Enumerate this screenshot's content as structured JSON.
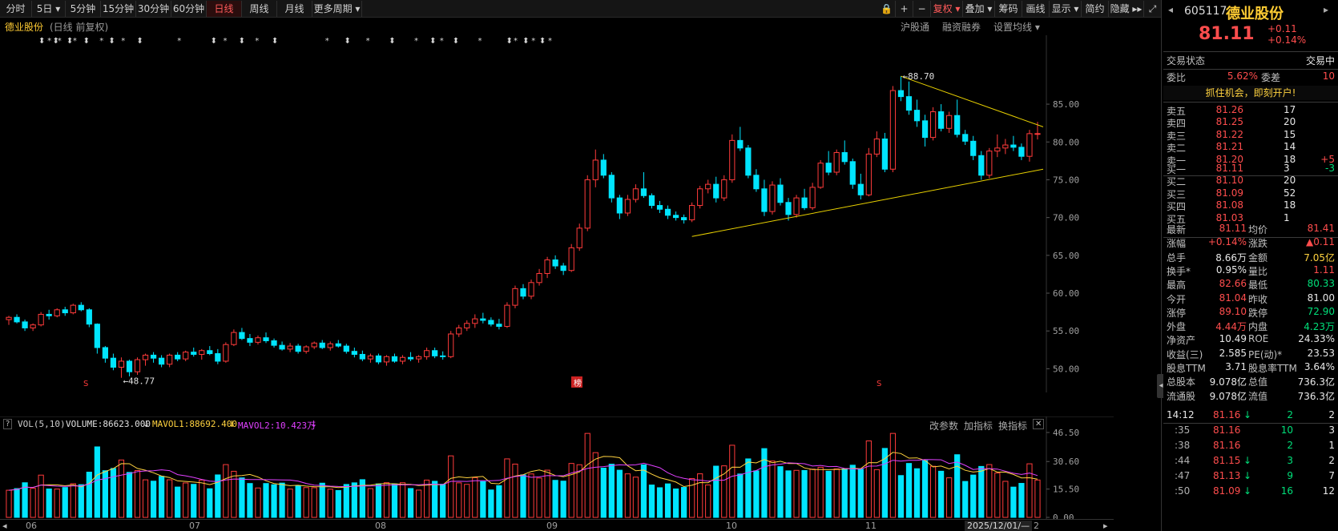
{
  "toolbar": {
    "periods": [
      "分时",
      "5日 ▾",
      "5分钟",
      "15分钟",
      "30分钟",
      "60分钟",
      "日线",
      "周线",
      "月线",
      "更多周期 ▾"
    ],
    "active_period": "日线",
    "right_buttons": [
      "🔒",
      "+",
      "−",
      "复权 ▾",
      "叠加 ▾",
      "筹码",
      "画线",
      "显示 ▾",
      "简约",
      "隐藏 ▸▸",
      "⤢"
    ]
  },
  "subheader": {
    "stock_name": "德业股份",
    "chart_desc": "(日线 前复权)",
    "links": [
      "沪股通",
      "融资融券",
      "设置均线 ▾"
    ]
  },
  "chart_data": {
    "type": "candlestick",
    "y_ticks": [
      "85.00",
      "80.00",
      "75.00",
      "70.00",
      "65.00",
      "60.00",
      "55.00",
      "50.00"
    ],
    "ylim": [
      47.5,
      92
    ],
    "x_labels": [
      "06",
      "07",
      "08",
      "09",
      "10",
      "11"
    ],
    "high_label": "88.70",
    "low_label": "48.77",
    "markers": [
      "S",
      "榜",
      "S"
    ],
    "ohlc": [
      [
        56.5,
        57.0,
        55.8,
        56.8
      ],
      [
        56.8,
        57.2,
        56.0,
        56.2
      ],
      [
        56.2,
        56.5,
        55.0,
        55.4
      ],
      [
        55.4,
        56.0,
        55.0,
        55.8
      ],
      [
        55.8,
        57.5,
        55.6,
        57.2
      ],
      [
        57.2,
        57.8,
        56.5,
        57.0
      ],
      [
        57.0,
        58.0,
        56.8,
        57.8
      ],
      [
        57.8,
        58.2,
        57.0,
        57.4
      ],
      [
        57.4,
        58.6,
        57.2,
        58.4
      ],
      [
        58.4,
        58.8,
        57.6,
        57.8
      ],
      [
        57.8,
        58.0,
        55.5,
        55.9
      ],
      [
        55.9,
        56.0,
        52.0,
        52.8
      ],
      [
        52.8,
        53.0,
        50.8,
        51.4
      ],
      [
        51.4,
        52.0,
        49.8,
        50.2
      ],
      [
        50.2,
        51.5,
        48.8,
        51.0
      ],
      [
        51.0,
        51.2,
        49.0,
        49.6
      ],
      [
        49.6,
        51.5,
        49.2,
        51.2
      ],
      [
        51.2,
        52.0,
        50.4,
        51.8
      ],
      [
        51.8,
        52.2,
        50.8,
        51.4
      ],
      [
        51.4,
        51.8,
        50.2,
        50.6
      ],
      [
        50.6,
        52.0,
        50.2,
        51.8
      ],
      [
        51.8,
        52.2,
        51.0,
        51.3
      ],
      [
        51.3,
        52.4,
        51.0,
        52.2
      ],
      [
        52.2,
        52.8,
        51.6,
        51.9
      ],
      [
        51.9,
        52.6,
        51.2,
        52.4
      ],
      [
        52.4,
        53.0,
        51.8,
        52.0
      ],
      [
        52.0,
        52.6,
        50.6,
        51.0
      ],
      [
        51.0,
        53.5,
        50.8,
        53.2
      ],
      [
        53.2,
        55.2,
        53.0,
        54.8
      ],
      [
        54.8,
        55.4,
        53.8,
        54.0
      ],
      [
        54.0,
        54.6,
        53.0,
        53.5
      ],
      [
        53.5,
        54.4,
        53.2,
        54.1
      ],
      [
        54.1,
        54.8,
        53.4,
        53.7
      ],
      [
        53.7,
        54.0,
        52.8,
        53.1
      ],
      [
        53.1,
        53.6,
        52.4,
        52.6
      ],
      [
        52.6,
        53.4,
        52.2,
        53.0
      ],
      [
        53.0,
        53.3,
        52.0,
        52.3
      ],
      [
        52.3,
        53.1,
        52.0,
        52.9
      ],
      [
        52.9,
        53.6,
        52.6,
        53.4
      ],
      [
        53.4,
        53.8,
        52.6,
        52.8
      ],
      [
        52.8,
        53.6,
        52.4,
        53.3
      ],
      [
        53.3,
        53.8,
        52.8,
        53.0
      ],
      [
        53.0,
        53.3,
        52.0,
        52.3
      ],
      [
        52.3,
        52.8,
        51.5,
        51.9
      ],
      [
        51.9,
        52.4,
        51.0,
        51.3
      ],
      [
        51.3,
        52.0,
        50.8,
        51.7
      ],
      [
        51.7,
        52.0,
        50.6,
        50.9
      ],
      [
        50.9,
        51.8,
        50.4,
        51.6
      ],
      [
        51.6,
        52.0,
        50.8,
        51.0
      ],
      [
        51.0,
        51.8,
        50.6,
        51.5
      ],
      [
        51.5,
        52.2,
        51.0,
        51.3
      ],
      [
        51.3,
        51.8,
        50.8,
        51.6
      ],
      [
        51.6,
        52.8,
        51.2,
        52.4
      ],
      [
        52.4,
        52.8,
        51.4,
        51.7
      ],
      [
        51.7,
        52.3,
        51.2,
        51.6
      ],
      [
        51.6,
        55.0,
        51.4,
        54.6
      ],
      [
        54.6,
        55.8,
        54.2,
        55.4
      ],
      [
        55.4,
        56.4,
        55.0,
        56.0
      ],
      [
        56.0,
        57.2,
        55.4,
        56.6
      ],
      [
        56.6,
        57.4,
        56.0,
        56.4
      ],
      [
        56.4,
        56.8,
        55.6,
        55.9
      ],
      [
        55.9,
        56.6,
        55.2,
        55.6
      ],
      [
        55.6,
        58.8,
        55.4,
        58.4
      ],
      [
        58.4,
        61.0,
        58.0,
        60.6
      ],
      [
        60.6,
        61.2,
        59.2,
        59.6
      ],
      [
        59.6,
        61.8,
        59.2,
        61.4
      ],
      [
        61.4,
        63.2,
        61.0,
        62.6
      ],
      [
        62.6,
        64.8,
        62.0,
        64.4
      ],
      [
        64.4,
        65.0,
        63.2,
        63.6
      ],
      [
        63.6,
        64.0,
        62.4,
        63.0
      ],
      [
        63.0,
        66.5,
        62.8,
        66.0
      ],
      [
        66.0,
        69.2,
        65.6,
        68.6
      ],
      [
        68.6,
        75.6,
        68.2,
        75.0
      ],
      [
        75.0,
        79.0,
        74.0,
        77.6
      ],
      [
        77.6,
        78.4,
        75.2,
        75.6
      ],
      [
        75.6,
        76.0,
        72.0,
        72.6
      ],
      [
        72.6,
        73.0,
        69.8,
        70.6
      ],
      [
        70.6,
        73.0,
        70.2,
        72.4
      ],
      [
        72.4,
        74.4,
        72.0,
        73.8
      ],
      [
        73.8,
        76.0,
        72.6,
        72.9
      ],
      [
        72.9,
        73.2,
        71.2,
        71.6
      ],
      [
        71.6,
        72.2,
        70.6,
        71.1
      ],
      [
        71.1,
        71.6,
        69.8,
        70.3
      ],
      [
        70.3,
        70.8,
        69.6,
        70.0
      ],
      [
        70.0,
        70.4,
        69.2,
        69.7
      ],
      [
        69.7,
        72.0,
        69.4,
        71.6
      ],
      [
        71.6,
        74.2,
        71.2,
        73.8
      ],
      [
        73.8,
        75.0,
        73.2,
        74.4
      ],
      [
        74.4,
        75.4,
        72.0,
        72.6
      ],
      [
        72.6,
        75.6,
        72.2,
        75.0
      ],
      [
        75.0,
        81.0,
        74.6,
        80.2
      ],
      [
        80.2,
        82.0,
        78.8,
        79.2
      ],
      [
        79.2,
        79.6,
        75.2,
        75.6
      ],
      [
        75.6,
        76.4,
        73.4,
        73.8
      ],
      [
        73.8,
        75.0,
        70.2,
        70.8
      ],
      [
        70.8,
        74.8,
        70.4,
        74.3
      ],
      [
        74.3,
        75.2,
        71.6,
        72.0
      ],
      [
        72.0,
        72.6,
        69.6,
        70.4
      ],
      [
        70.4,
        73.0,
        70.0,
        72.6
      ],
      [
        72.6,
        73.8,
        71.0,
        71.3
      ],
      [
        71.3,
        74.6,
        71.0,
        74.0
      ],
      [
        74.0,
        77.6,
        73.8,
        77.2
      ],
      [
        77.2,
        78.8,
        75.6,
        76.0
      ],
      [
        76.0,
        79.0,
        75.6,
        78.6
      ],
      [
        78.6,
        80.2,
        77.0,
        77.4
      ],
      [
        77.4,
        77.8,
        73.8,
        74.4
      ],
      [
        74.4,
        75.8,
        72.4,
        73.0
      ],
      [
        73.0,
        79.2,
        72.8,
        78.4
      ],
      [
        78.4,
        81.4,
        78.0,
        80.4
      ],
      [
        80.4,
        81.2,
        76.0,
        76.4
      ],
      [
        76.4,
        87.4,
        76.0,
        86.8
      ],
      [
        86.8,
        88.7,
        85.4,
        86.0
      ],
      [
        86.0,
        88.0,
        83.6,
        84.2
      ],
      [
        84.2,
        85.6,
        82.0,
        82.8
      ],
      [
        82.8,
        83.6,
        79.4,
        80.6
      ],
      [
        80.6,
        84.6,
        80.2,
        84.0
      ],
      [
        84.0,
        85.0,
        81.4,
        81.8
      ],
      [
        81.8,
        84.0,
        81.2,
        83.5
      ],
      [
        83.5,
        85.6,
        80.6,
        81.0
      ],
      [
        81.0,
        81.6,
        79.6,
        80.1
      ],
      [
        80.1,
        80.8,
        77.6,
        78.2
      ],
      [
        78.2,
        78.8,
        75.0,
        75.6
      ],
      [
        75.6,
        79.2,
        75.2,
        78.8
      ],
      [
        78.8,
        81.0,
        78.0,
        79.2
      ],
      [
        79.2,
        80.4,
        78.4,
        79.6
      ],
      [
        79.6,
        80.8,
        78.8,
        79.3
      ],
      [
        79.3,
        79.8,
        77.6,
        78.1
      ],
      [
        78.1,
        81.6,
        77.4,
        81.1
      ],
      [
        81.04,
        82.66,
        80.33,
        81.11
      ]
    ],
    "volume": [],
    "vol_ticks": [
      "46.50",
      "30.60",
      "15.50",
      "0.00"
    ]
  },
  "vol_header": {
    "label": "VOL(5,10)",
    "volume": "VOLUME:86623.000",
    "mavol1": "MAVOL1:88692.400",
    "mavol2": "MAVOL2:10.423万",
    "links": [
      "改参数",
      "加指标",
      "换指标"
    ],
    "date_tag": "2025/12/01/—"
  },
  "panel": {
    "code": "605117",
    "name": "德业股份",
    "price": "81.11",
    "change": "+0.11",
    "change_pct": "+0.14%",
    "status_label": "交易状态",
    "status_value": "交易中",
    "weibi_label": "委比",
    "weibi": "5.62%",
    "weicha_label": "委差",
    "weicha": "10",
    "banner": "抓住机会，即刻开户!",
    "asks": [
      {
        "label": "卖五",
        "price": "81.26",
        "vol": "17",
        "chg": ""
      },
      {
        "label": "卖四",
        "price": "81.25",
        "vol": "20",
        "chg": ""
      },
      {
        "label": "卖三",
        "price": "81.22",
        "vol": "15",
        "chg": ""
      },
      {
        "label": "卖二",
        "price": "81.21",
        "vol": "14",
        "chg": ""
      },
      {
        "label": "卖一",
        "price": "81.20",
        "vol": "18",
        "chg": "+5"
      }
    ],
    "bids": [
      {
        "label": "买一",
        "price": "81.11",
        "vol": "3",
        "chg": "-3"
      },
      {
        "label": "买二",
        "price": "81.10",
        "vol": "20",
        "chg": ""
      },
      {
        "label": "买三",
        "price": "81.09",
        "vol": "52",
        "chg": ""
      },
      {
        "label": "买四",
        "price": "81.08",
        "vol": "18",
        "chg": ""
      },
      {
        "label": "买五",
        "price": "81.03",
        "vol": "1",
        "chg": ""
      }
    ],
    "stats": [
      {
        "l1": "最新",
        "v1": "81.11",
        "c1": "red",
        "l2": "均价",
        "v2": "81.41",
        "c2": "red"
      },
      {
        "l1": "涨幅",
        "v1": "+0.14%",
        "c1": "red",
        "l2": "涨跌",
        "v2": "▲0.11",
        "c2": "red"
      },
      {
        "l1": "总手",
        "v1": "8.66万",
        "c1": "white",
        "l2": "金额",
        "v2": "7.05亿",
        "c2": "yellow"
      },
      {
        "l1": "换手*",
        "v1": "0.95%",
        "c1": "white",
        "l2": "量比",
        "v2": "1.11",
        "c2": "red"
      },
      {
        "l1": "最高",
        "v1": "82.66",
        "c1": "red",
        "l2": "最低",
        "v2": "80.33",
        "c2": "green"
      },
      {
        "l1": "今开",
        "v1": "81.04",
        "c1": "red",
        "l2": "昨收",
        "v2": "81.00",
        "c2": "white"
      },
      {
        "l1": "涨停",
        "v1": "89.10",
        "c1": "red",
        "l2": "跌停",
        "v2": "72.90",
        "c2": "green"
      },
      {
        "l1": "外盘",
        "v1": "4.44万",
        "c1": "red",
        "l2": "内盘",
        "v2": "4.23万",
        "c2": "green"
      },
      {
        "l1": "净资产",
        "v1": "10.49",
        "c1": "white",
        "l2": "ROE",
        "v2": "24.33%",
        "c2": "white"
      },
      {
        "l1": "收益(三)",
        "v1": "2.585",
        "c1": "white",
        "l2": "PE(动)*",
        "v2": "23.53",
        "c2": "white"
      },
      {
        "l1": "股息TTM",
        "v1": "3.71",
        "c1": "white",
        "l2": "股息率TTM",
        "v2": "3.64%",
        "c2": "white"
      },
      {
        "l1": "总股本",
        "v1": "9.078亿",
        "c1": "white",
        "l2": "总值",
        "v2": "736.3亿",
        "c2": "white"
      },
      {
        "l1": "流通股",
        "v1": "9.078亿",
        "c1": "white",
        "l2": "流值",
        "v2": "736.3亿",
        "c2": "white"
      }
    ],
    "ticks": [
      {
        "time": "14:12",
        "price": "81.16",
        "dir": "↓",
        "vol": "2",
        "n": "2"
      },
      {
        "time": ":35",
        "price": "81.16",
        "dir": "",
        "vol": "10",
        "n": "3"
      },
      {
        "time": ":38",
        "price": "81.16",
        "dir": "",
        "vol": "2",
        "n": "1"
      },
      {
        "time": ":44",
        "price": "81.15",
        "dir": "↓",
        "vol": "3",
        "n": "2"
      },
      {
        "time": ":47",
        "price": "81.13",
        "dir": "↓",
        "vol": "9",
        "n": "7"
      },
      {
        "time": ":50",
        "price": "81.09",
        "dir": "↓",
        "vol": "16",
        "n": "12"
      }
    ]
  }
}
